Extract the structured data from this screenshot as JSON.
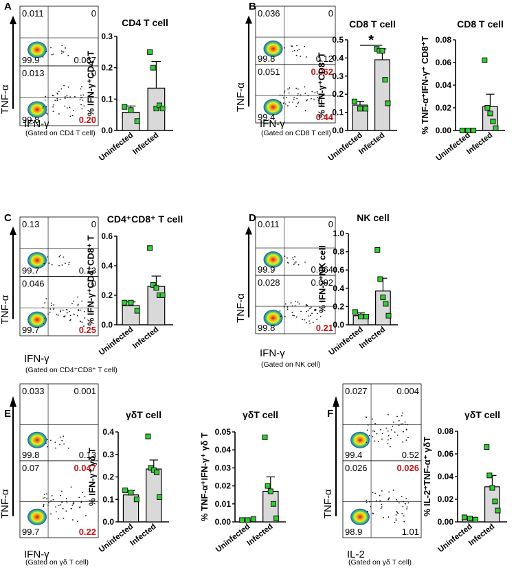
{
  "panels": [
    {
      "id": "A",
      "label": "A",
      "y_axis": "TNF-α",
      "x_axis": "IFN-γ",
      "gate": "(Gated on CD4 T cell)",
      "plots": [
        {
          "q": [
            "0.011",
            "0",
            "99.9",
            "0.067"
          ],
          "red": []
        },
        {
          "q": [
            "0.013",
            "0",
            "99.8",
            "0.20"
          ],
          "red": [
            3
          ]
        }
      ]
    },
    {
      "id": "B",
      "label": "B",
      "y_axis": "TNF-α",
      "x_axis": "IFN-γ",
      "gate": "(Gated on CD8 T cell)",
      "plots": [
        {
          "q": [
            "0.036",
            "0",
            "99.8",
            "0.12"
          ],
          "red": []
        },
        {
          "q": [
            "0.051",
            "0.062",
            "99.4",
            "0.44"
          ],
          "red": [
            1,
            3
          ]
        }
      ]
    },
    {
      "id": "C",
      "label": "C",
      "y_axis": "TNF-α",
      "x_axis": "IFN-γ",
      "gate": "(Gated on CD4⁺CD8⁺ T cell)",
      "plots": [
        {
          "q": [
            "0.13",
            "0",
            "99.7",
            "0.13"
          ],
          "red": []
        },
        {
          "q": [
            "0.046",
            "0",
            "99.7",
            "0.25"
          ],
          "red": [
            3
          ]
        }
      ]
    },
    {
      "id": "D",
      "label": "D",
      "y_axis": "TNF-α",
      "x_axis": "IFN-γ",
      "gate": "(Gated on NK cell)",
      "plots": [
        {
          "q": [
            "0.011",
            "0",
            "99.9",
            "0.064"
          ],
          "red": []
        },
        {
          "q": [
            "0.028",
            "0.002",
            "99.8",
            "0.21"
          ],
          "red": [
            3
          ]
        }
      ]
    },
    {
      "id": "E",
      "label": "E",
      "y_axis": "TNF-α",
      "x_axis": "IFN-γ",
      "gate": "(Gated on γδ T cell)",
      "plots": [
        {
          "q": [
            "0.033",
            "0.001",
            "99.8",
            "0.13"
          ],
          "red": []
        },
        {
          "q": [
            "0.07",
            "0.047",
            "99.7",
            "0.22"
          ],
          "red": [
            1,
            3
          ]
        }
      ]
    },
    {
      "id": "F",
      "label": "F",
      "y_axis": "TNF-α",
      "x_axis": "IL-2",
      "gate": "(Gated on γδ T cell)",
      "plots": [
        {
          "q": [
            "0.027",
            "0.004",
            "99.4",
            "0.52"
          ],
          "red": []
        },
        {
          "q": [
            "0.026",
            "0.026",
            "98.9",
            "1.01"
          ],
          "red": [
            1
          ]
        }
      ]
    }
  ],
  "colors": {
    "bar": "#d9d9d9",
    "point": "#33cc33",
    "point_edge": "#111111",
    "highlight": "#c0141a"
  },
  "chart_data": [
    {
      "panel": "A",
      "type": "bar",
      "title": "CD4 T cell",
      "ylabel": "% IFN-γ⁺CD4⁺T",
      "ylim": [
        0,
        0.3
      ],
      "yticks": [
        "0.0",
        "0.1",
        "0.2",
        "0.3"
      ],
      "categories": [
        "Uninfected",
        "Infected"
      ],
      "values": [
        0.058,
        0.135
      ],
      "errors": [
        0.02,
        0.085
      ],
      "points": [
        [
          0.075,
          0.065,
          0.03
        ],
        [
          0.25,
          0.2,
          0.07,
          0.08,
          0.07
        ]
      ],
      "significance": ""
    },
    {
      "panel": "B",
      "type": "bar",
      "title": "CD8 T cell",
      "ylabel": "% IFN-γ⁺CD8⁺T",
      "ylim": [
        0,
        0.5
      ],
      "yticks": [
        "0.0",
        "0.1",
        "0.2",
        "0.3",
        "0.4",
        "0.5"
      ],
      "categories": [
        "Uninfected",
        "Infected"
      ],
      "values": [
        0.14,
        0.39
      ],
      "errors": [
        0.02,
        0.06
      ],
      "points": [
        [
          0.16,
          0.12,
          0.12
        ],
        [
          0.45,
          0.44,
          0.44,
          0.28,
          0.15
        ]
      ],
      "significance": "*"
    },
    {
      "panel": "B2",
      "type": "bar",
      "title": "CD8 T cell",
      "ylabel": "% TNF-α⁺IFN-γ⁺ CD8⁺T",
      "ylim": [
        0,
        0.08
      ],
      "yticks": [
        "0.00",
        "0.02",
        "0.04",
        "0.06",
        "0.08"
      ],
      "categories": [
        "Uninfected",
        "Infected"
      ],
      "values": [
        0.0,
        0.021
      ],
      "errors": [
        0.0,
        0.011
      ],
      "points": [
        [
          0.0,
          0.0,
          0.0
        ],
        [
          0.062,
          0.02,
          0.015,
          0.008,
          0.002
        ]
      ],
      "significance": ""
    },
    {
      "panel": "C",
      "type": "bar",
      "title": "CD4⁺CD8⁺ T  cell",
      "ylabel": "% IFN-γ⁺CD4⁺CD8⁺ T",
      "ylim": [
        0,
        0.6
      ],
      "yticks": [
        "0.0",
        "0.2",
        "0.4",
        "0.6"
      ],
      "categories": [
        "Uninfected",
        "Infected"
      ],
      "values": [
        0.13,
        0.26
      ],
      "errors": [
        0.025,
        0.07
      ],
      "points": [
        [
          0.15,
          0.15,
          0.095
        ],
        [
          0.52,
          0.27,
          0.25,
          0.2,
          0.2
        ]
      ],
      "significance": ""
    },
    {
      "panel": "D",
      "type": "bar",
      "title": "NK cell",
      "ylabel": "% IFN-γ⁺NK cell",
      "ylim": [
        0,
        1.0
      ],
      "yticks": [
        "0.0",
        "0.2",
        "0.4",
        "0.6",
        "0.8",
        "1.0"
      ],
      "categories": [
        "Uninfected",
        "Infected"
      ],
      "values": [
        0.1,
        0.37
      ],
      "errors": [
        0.03,
        0.14
      ],
      "points": [
        [
          0.14,
          0.09,
          0.09
        ],
        [
          0.82,
          0.5,
          0.3,
          0.23,
          0.1
        ]
      ],
      "significance": ""
    },
    {
      "panel": "E",
      "type": "bar",
      "title": "γδT cell",
      "ylabel": "% IFN-γ⁺ γδ T",
      "ylim": [
        0,
        0.4
      ],
      "yticks": [
        "0.0",
        "0.1",
        "0.2",
        "0.3",
        "0.4"
      ],
      "categories": [
        "Uninfected",
        "Infected"
      ],
      "values": [
        0.12,
        0.235
      ],
      "errors": [
        0.02,
        0.04
      ],
      "points": [
        [
          0.14,
          0.13,
          0.1
        ],
        [
          0.38,
          0.24,
          0.23,
          0.22,
          0.11
        ]
      ],
      "significance": ""
    },
    {
      "panel": "E2",
      "type": "bar",
      "title": "γδT cell",
      "ylabel": "% TNF-α⁺IFN-γ⁺ γδ T",
      "ylim": [
        0,
        0.05
      ],
      "yticks": [
        "0.00",
        "0.01",
        "0.02",
        "0.03",
        "0.04",
        "0.05"
      ],
      "categories": [
        "Uninfected",
        "Infected"
      ],
      "values": [
        0.0007,
        0.017
      ],
      "errors": [
        0.0003,
        0.008
      ],
      "points": [
        [
          0.001,
          0.001,
          0.0015
        ],
        [
          0.047,
          0.02,
          0.017,
          0.01,
          0.002
        ]
      ],
      "significance": ""
    },
    {
      "panel": "F",
      "type": "bar",
      "title": "γδT cell",
      "ylabel": "% IL-2⁺TNF-α⁺ γδT",
      "ylim": [
        0,
        0.08
      ],
      "yticks": [
        "0.00",
        "0.02",
        "0.04",
        "0.06",
        "0.08"
      ],
      "categories": [
        "Uninfected",
        "Infected"
      ],
      "values": [
        0.002,
        0.031
      ],
      "errors": [
        0.001,
        0.01
      ],
      "points": [
        [
          0.004,
          0.003,
          0.002
        ],
        [
          0.066,
          0.041,
          0.03,
          0.018,
          0.01
        ]
      ],
      "significance": ""
    }
  ]
}
